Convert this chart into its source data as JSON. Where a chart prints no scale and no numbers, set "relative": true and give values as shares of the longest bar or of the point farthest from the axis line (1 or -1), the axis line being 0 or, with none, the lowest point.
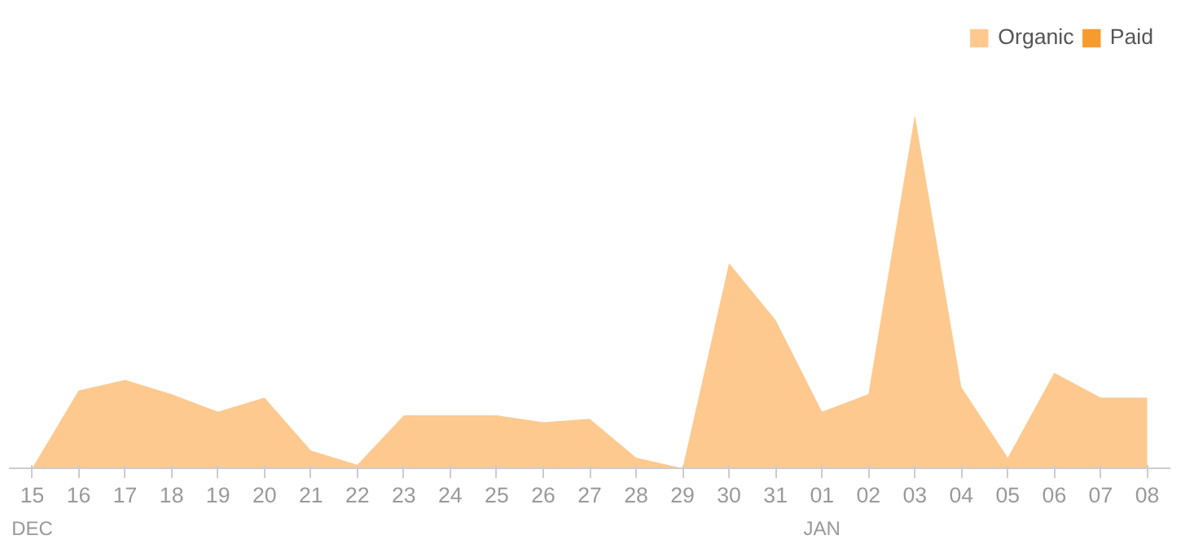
{
  "chart_data": {
    "type": "area",
    "relative": true,
    "legend": "top right",
    "categories": [
      "15",
      "16",
      "17",
      "18",
      "19",
      "20",
      "21",
      "22",
      "23",
      "24",
      "25",
      "26",
      "27",
      "28",
      "29",
      "30",
      "31",
      "01",
      "02",
      "03",
      "04",
      "05",
      "06",
      "07",
      "08"
    ],
    "annotations": [
      "DEC",
      "JAN"
    ],
    "series": [
      {
        "name": "Organic",
        "color": "#fec98f",
        "values": [
          0,
          0.22,
          0.25,
          0.21,
          0.16,
          0.2,
          0.05,
          0.01,
          0.15,
          0.15,
          0.15,
          0.13,
          0.14,
          0.03,
          0,
          0.58,
          0.42,
          0.16,
          0.21,
          1,
          0.23,
          0.03,
          0.27,
          0.2,
          0.2
        ]
      },
      {
        "name": "Paid",
        "color": "#f79b2e",
        "values": [
          null,
          null,
          null,
          null,
          null,
          null,
          null,
          null,
          null,
          null,
          null,
          null,
          null,
          null,
          null,
          null,
          null,
          null,
          null,
          null,
          null,
          null,
          null,
          null,
          null
        ]
      }
    ]
  }
}
